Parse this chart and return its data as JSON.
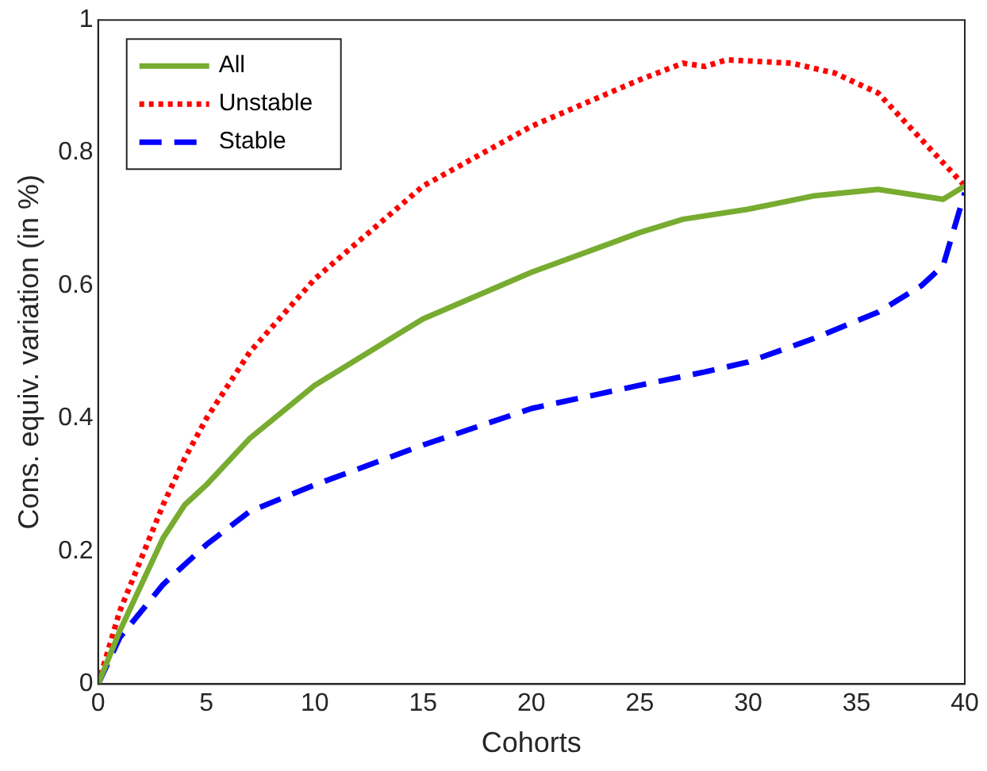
{
  "chart_data": {
    "type": "line",
    "xlabel": "Cohorts",
    "ylabel": "Cons. equiv. variation (in %)",
    "xlim": [
      0,
      40
    ],
    "xticks": [
      0,
      5,
      10,
      15,
      20,
      25,
      30,
      35,
      40
    ],
    "ylim": [
      0,
      1
    ],
    "yticks": [
      0,
      0.2,
      0.4,
      0.6,
      0.8,
      1
    ],
    "grid": false,
    "legend": "top left",
    "marker": "none",
    "series": [
      {
        "name": "All",
        "color": "#77ac30",
        "line_style": "solid",
        "x": [
          0,
          1,
          2,
          3,
          4,
          5,
          7,
          10,
          15,
          20,
          25,
          27,
          30,
          33,
          36,
          39,
          40
        ],
        "values": [
          0,
          0.08,
          0.15,
          0.22,
          0.27,
          0.3,
          0.37,
          0.45,
          0.55,
          0.62,
          0.68,
          0.7,
          0.715,
          0.735,
          0.745,
          0.73,
          0.75
        ]
      },
      {
        "name": "Unstable",
        "color": "#ff0000",
        "line_style": "dotted",
        "x": [
          0,
          1,
          2,
          3,
          4,
          5,
          7,
          10,
          15,
          20,
          25,
          27,
          28,
          29,
          32,
          34,
          36,
          38,
          40
        ],
        "values": [
          0,
          0.11,
          0.19,
          0.27,
          0.34,
          0.4,
          0.5,
          0.61,
          0.75,
          0.84,
          0.91,
          0.935,
          0.93,
          0.94,
          0.935,
          0.92,
          0.89,
          0.82,
          0.75
        ]
      },
      {
        "name": "Stable",
        "color": "#0000ff",
        "line_style": "dashed",
        "x": [
          0,
          1,
          3,
          5,
          7,
          10,
          15,
          20,
          25,
          28,
          30,
          33,
          36,
          38,
          39,
          40
        ],
        "values": [
          0,
          0.07,
          0.15,
          0.21,
          0.26,
          0.3,
          0.36,
          0.415,
          0.45,
          0.47,
          0.485,
          0.52,
          0.56,
          0.6,
          0.63,
          0.74
        ]
      }
    ]
  }
}
